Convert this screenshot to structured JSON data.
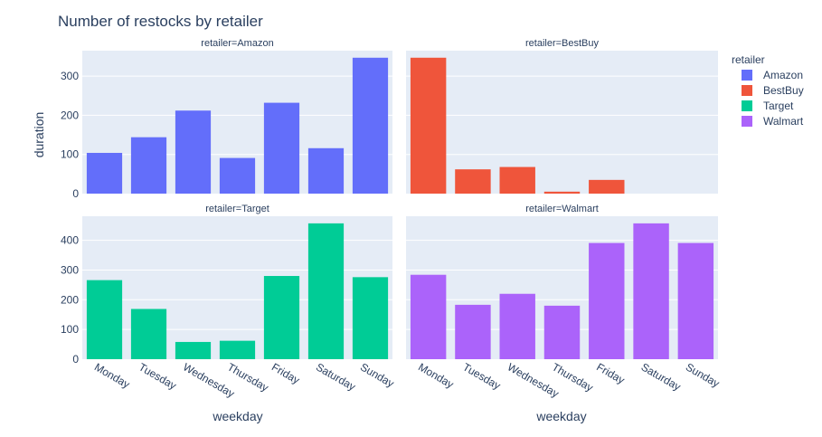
{
  "chart_data": {
    "type": "bar",
    "title": "Number of restocks by retailer",
    "xlabel": "weekday",
    "ylabel": "duration",
    "categories": [
      "Monday",
      "Tuesday",
      "Wednesday",
      "Thursday",
      "Friday",
      "Saturday",
      "Sunday"
    ],
    "grid": true,
    "legend": {
      "title": "retailer",
      "placement": "right"
    },
    "facets": [
      {
        "title": "retailer=Amazon",
        "series": "Amazon",
        "color": "#636efa",
        "values": [
          104,
          144,
          212,
          91,
          232,
          116,
          347
        ],
        "ylim": [
          0,
          365
        ],
        "yticks": [
          0,
          100,
          200,
          300
        ]
      },
      {
        "title": "retailer=BestBuy",
        "series": "BestBuy",
        "color": "#EF553B",
        "values": [
          347,
          62,
          68,
          5,
          35,
          0,
          0
        ],
        "ylim": [
          0,
          365
        ],
        "yticks": [
          0,
          100,
          200,
          300
        ]
      },
      {
        "title": "retailer=Target",
        "series": "Target",
        "color": "#00cc96",
        "values": [
          266,
          169,
          58,
          62,
          280,
          457,
          276
        ],
        "ylim": [
          0,
          481
        ],
        "yticks": [
          0,
          100,
          200,
          300,
          400
        ]
      },
      {
        "title": "retailer=Walmart",
        "series": "Walmart",
        "color": "#ab63fa",
        "values": [
          284,
          183,
          220,
          180,
          391,
          457,
          391
        ],
        "ylim": [
          0,
          481
        ],
        "yticks": [
          0,
          100,
          200,
          300,
          400
        ]
      }
    ]
  }
}
